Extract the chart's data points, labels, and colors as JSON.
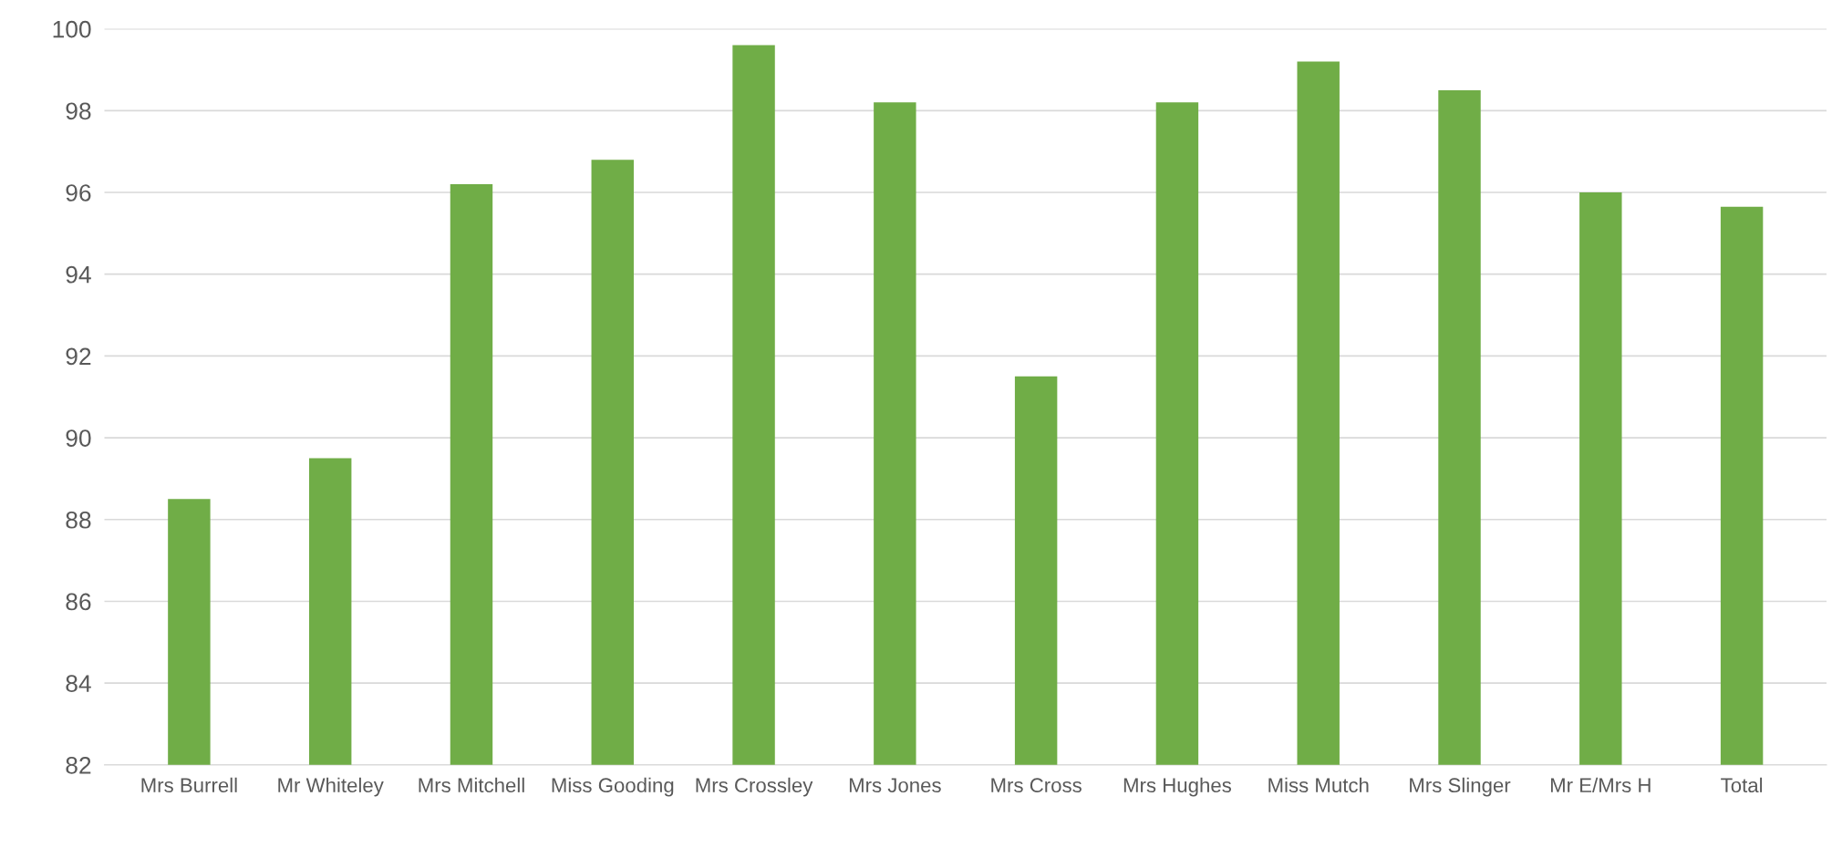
{
  "chart_data": {
    "type": "bar",
    "categories": [
      "Mrs Burrell",
      "Mr Whiteley",
      "Mrs Mitchell",
      "Miss Gooding",
      "Mrs Crossley",
      "Mrs Jones",
      "Mrs Cross",
      "Mrs Hughes",
      "Miss Mutch",
      "Mrs Slinger",
      "Mr E/Mrs H",
      "Total"
    ],
    "values": [
      88.5,
      89.5,
      96.2,
      96.8,
      99.6,
      98.2,
      91.5,
      98.2,
      99.2,
      98.5,
      96.0,
      95.65
    ],
    "color": "#70ad47",
    "ylim": [
      82,
      100
    ],
    "yticks": [
      82,
      84,
      86,
      88,
      90,
      92,
      94,
      96,
      98,
      100
    ],
    "grid": "y"
  }
}
